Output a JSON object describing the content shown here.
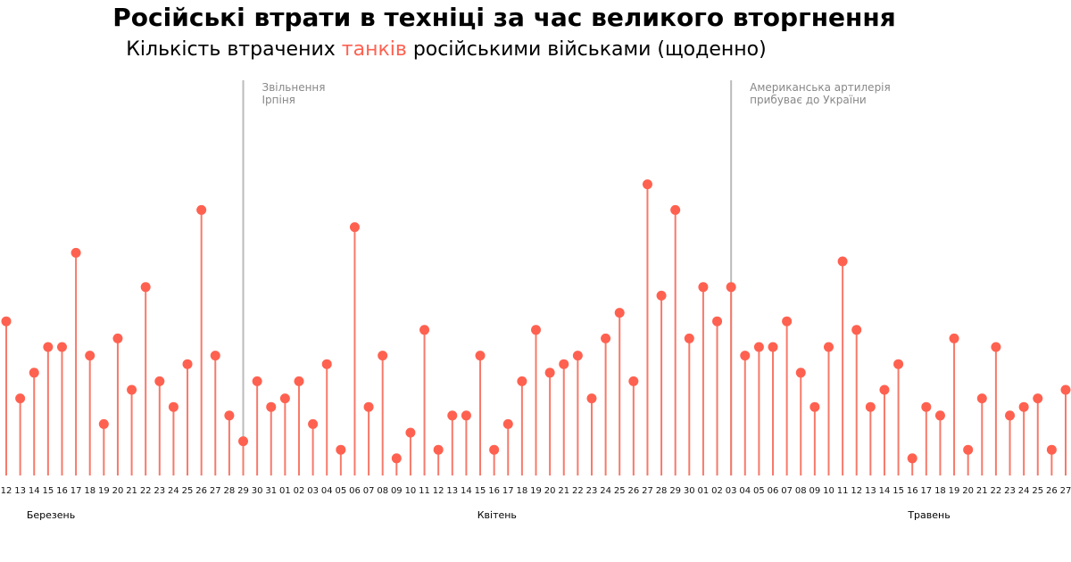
{
  "chart_data": {
    "type": "lollipop",
    "title": "Російські втрати в техніці за час великого вторгнення",
    "subtitle": {
      "before": "Кількість втрачених ",
      "highlight": "танків",
      "after": " російськими військами (щоденно)"
    },
    "colors": {
      "marker": "#ff6150",
      "stem": "#f7796a",
      "annotation_line": "#bbbbbb",
      "highlight": "#ff6150"
    },
    "x": [
      "12",
      "13",
      "14",
      "15",
      "16",
      "17",
      "18",
      "19",
      "20",
      "21",
      "22",
      "23",
      "24",
      "25",
      "26",
      "27",
      "28",
      "29",
      "30",
      "31",
      "01",
      "02",
      "03",
      "04",
      "05",
      "06",
      "07",
      "08",
      "09",
      "10",
      "11",
      "12",
      "13",
      "14",
      "15",
      "16",
      "17",
      "18",
      "19",
      "20",
      "21",
      "22",
      "23",
      "24",
      "25",
      "26",
      "27",
      "28",
      "29",
      "30",
      "01",
      "02",
      "03",
      "04",
      "05",
      "06",
      "07",
      "08",
      "09",
      "10",
      "11",
      "12",
      "13",
      "14",
      "15",
      "16",
      "17",
      "18",
      "19",
      "20",
      "21",
      "22",
      "23",
      "24",
      "25",
      "26",
      "27"
    ],
    "values": [
      18,
      9,
      12,
      15,
      15,
      26,
      14,
      6,
      16,
      10,
      22,
      11,
      8,
      13,
      31,
      14,
      7,
      4,
      11,
      8,
      9,
      11,
      6,
      13,
      3,
      29,
      8,
      14,
      2,
      5,
      17,
      3,
      7,
      7,
      14,
      3,
      6,
      11,
      17,
      12,
      13,
      14,
      9,
      16,
      19,
      11,
      34,
      21,
      31,
      16,
      22,
      18,
      22,
      14,
      15,
      15,
      18,
      12,
      8,
      15,
      25,
      17,
      8,
      10,
      13,
      2,
      8,
      7,
      16,
      3,
      9,
      15,
      7,
      8,
      9,
      3,
      10
    ],
    "months": [
      {
        "label": "Березень",
        "index": 2.5
      },
      {
        "label": "Квітень",
        "index": 34.5
      },
      {
        "label": "Травень",
        "index": 65.5
      }
    ],
    "annotations": [
      {
        "index": 17,
        "lines": [
          "Звільнення",
          "Ірпіня"
        ]
      },
      {
        "index": 52,
        "lines": [
          "Американська артилерія",
          "прибуває до України"
        ]
      }
    ],
    "y_axis_visible": false,
    "grid": false
  }
}
